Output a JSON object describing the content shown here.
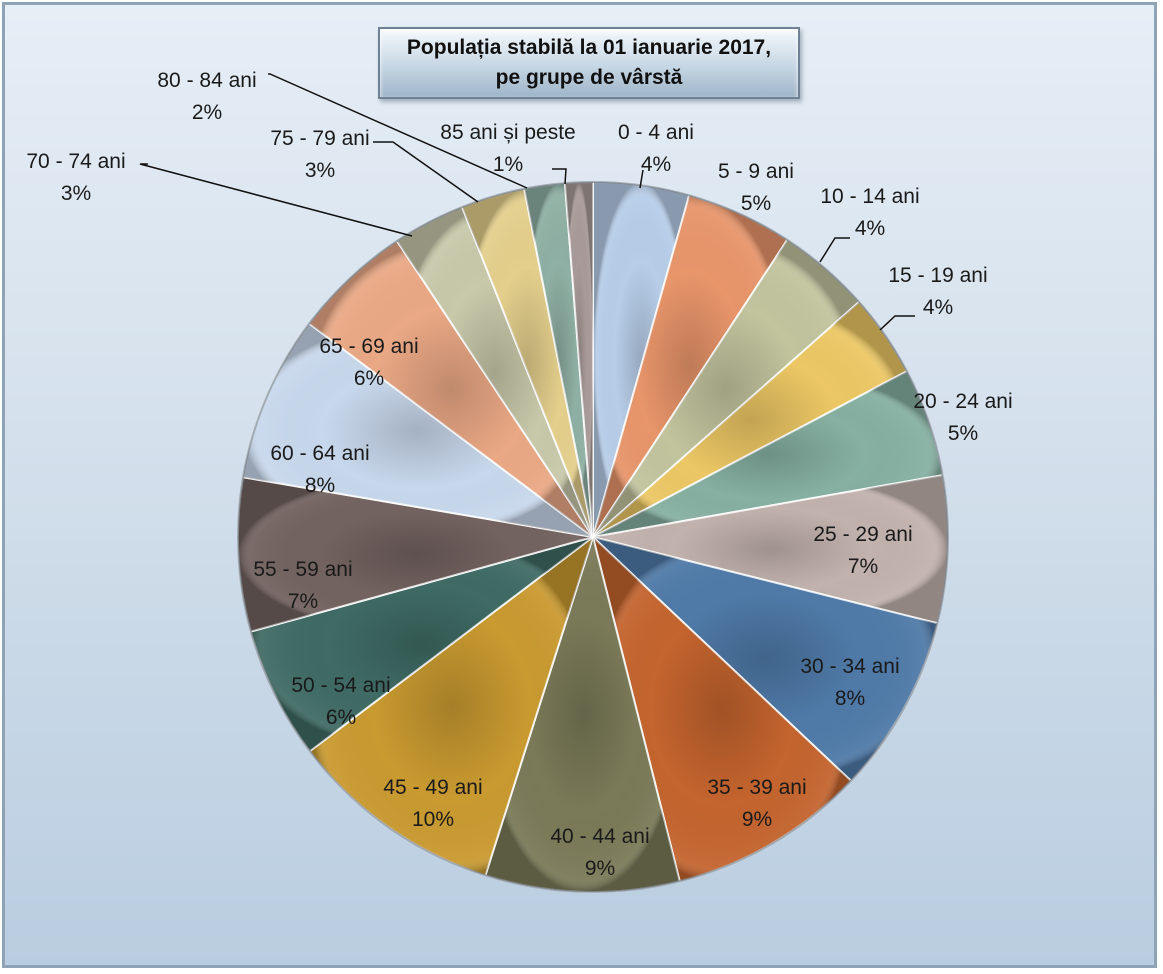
{
  "chart_data": {
    "type": "pie",
    "title": [
      "Populația stabilă la 01 ianuarie 2017,",
      "pe grupe de vârstă"
    ],
    "slices": [
      {
        "label": "0 - 4 ani",
        "pct_label": "4%",
        "value": 4.5,
        "color": "#b7cde8"
      },
      {
        "label": "5 - 9 ani",
        "pct_label": "5%",
        "value": 5.0,
        "color": "#e8956a"
      },
      {
        "label": "10 - 14 ani",
        "pct_label": "4%",
        "value": 4.4,
        "color": "#c2c49e"
      },
      {
        "label": "15 - 19 ani",
        "pct_label": "4%",
        "value": 3.9,
        "color": "#ecc764"
      },
      {
        "label": "20 - 24 ani",
        "pct_label": "5%",
        "value": 5.1,
        "color": "#86b0a2"
      },
      {
        "label": "25 - 29 ani",
        "pct_label": "7%",
        "value": 6.9,
        "color": "#c2b2ae"
      },
      {
        "label": "30 - 34 ani",
        "pct_label": "8%",
        "value": 8.4,
        "color": "#4f7aa8"
      },
      {
        "label": "35 - 39 ani",
        "pct_label": "9%",
        "value": 9.3,
        "color": "#c4642e"
      },
      {
        "label": "40 - 44 ani",
        "pct_label": "9%",
        "value": 9.1,
        "color": "#7a7a58"
      },
      {
        "label": "45 - 49 ani",
        "pct_label": "10%",
        "value": 10.1,
        "color": "#c99a30"
      },
      {
        "label": "50 - 54 ani",
        "pct_label": "6%",
        "value": 6.2,
        "color": "#3f6b64"
      },
      {
        "label": "55 - 59 ani",
        "pct_label": "7%",
        "value": 7.2,
        "color": "#726260"
      },
      {
        "label": "60 - 64 ani",
        "pct_label": "8%",
        "value": 7.8,
        "color": "#c8d8ec"
      },
      {
        "label": "65 - 69 ani",
        "pct_label": "6%",
        "value": 5.6,
        "color": "#eaa885"
      },
      {
        "label": "70 - 74 ani",
        "pct_label": "3%",
        "value": 3.4,
        "color": "#c8c8aa"
      },
      {
        "label": "75 - 79 ani",
        "pct_label": "3%",
        "value": 3.0,
        "color": "#e4cf8c"
      },
      {
        "label": "80 - 84 ani",
        "pct_label": "2%",
        "value": 1.9,
        "color": "#8fb0a4"
      },
      {
        "label": "85 ani și peste",
        "pct_label": "1%",
        "value": 1.3,
        "color": "#a89a98"
      }
    ]
  }
}
